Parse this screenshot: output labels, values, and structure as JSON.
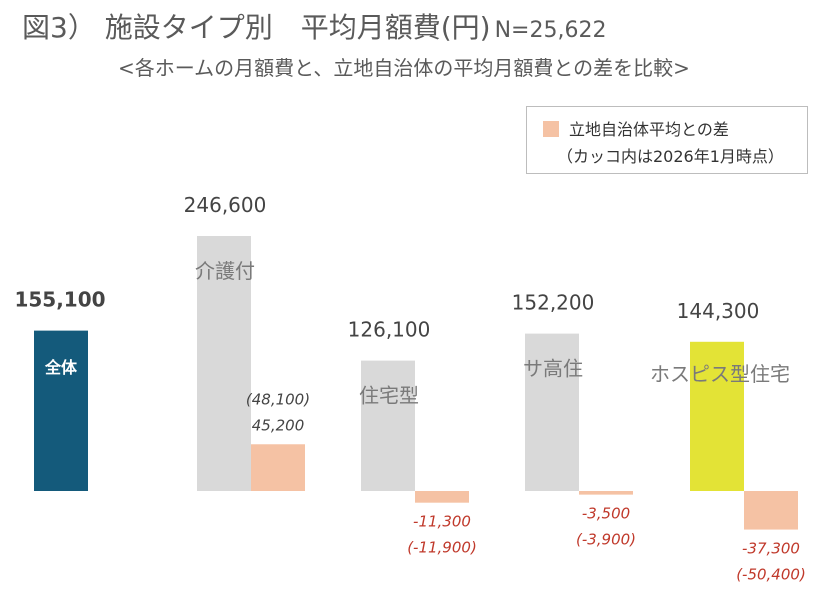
{
  "title": {
    "main": "図3） 施設タイプ別　平均月額費(円)",
    "n": "N=25,622"
  },
  "subtitle": "<各ホームの月額費と、立地自治体の平均月額費との差を比較>",
  "legend": {
    "label": "立地自治体平均との差",
    "note": "（カッコ内は2026年1月時点）"
  },
  "chart_data": {
    "type": "bar",
    "title": "図3） 施設タイプ別　平均月額費(円)",
    "ylim": [
      -55000,
      260000
    ],
    "grid": false,
    "legend_position": "top-right",
    "colors": {
      "overall": "#145a7b",
      "type": "#d9d9d9",
      "hospice": "#e3e336",
      "diff": "#f5c2a4",
      "negative_text": "#c0392b"
    },
    "categories": [
      {
        "name": "全体",
        "value": 155100,
        "value_label": "155,100",
        "diff": null
      },
      {
        "name": "介護付",
        "value": 246600,
        "value_label": "246,600",
        "diff": 45200,
        "diff_label": "45,200",
        "prev_label": "(48,100)"
      },
      {
        "name": "住宅型",
        "value": 126100,
        "value_label": "126,100",
        "diff": -11300,
        "diff_label": "-11,300",
        "prev_label": "(-11,900)"
      },
      {
        "name": "サ高住",
        "value": 152200,
        "value_label": "152,200",
        "diff": -3500,
        "diff_label": "-3,500",
        "prev_label": "(-3,900)"
      },
      {
        "name": "ホスピス型住宅",
        "value": 144300,
        "value_label": "144,300",
        "diff": -37300,
        "diff_label": "-37,300",
        "prev_label": "(-50,400)"
      }
    ]
  }
}
